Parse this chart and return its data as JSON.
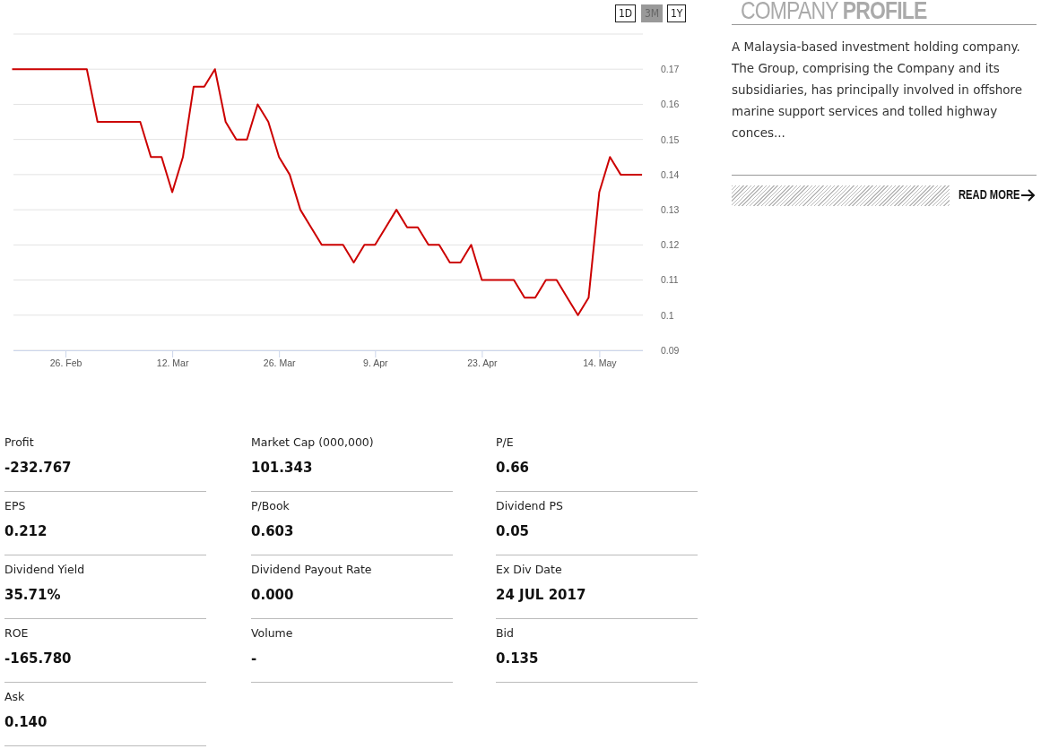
{
  "chart_data": [
    {
      "type": "line",
      "categories": [
        null,
        null,
        null,
        null,
        null,
        "26. Feb",
        null,
        null,
        null,
        null,
        null,
        null,
        null,
        null,
        null,
        "12. Mar",
        null,
        null,
        null,
        null,
        null,
        null,
        null,
        null,
        null,
        "26. Mar",
        null,
        null,
        null,
        null,
        null,
        null,
        null,
        null,
        "9. Apr",
        null,
        null,
        null,
        null,
        null,
        null,
        null,
        null,
        null,
        "23. Apr",
        null,
        null,
        null,
        null,
        null,
        null,
        null,
        null,
        null,
        null,
        "14. May",
        null,
        null,
        null,
        null
      ],
      "series": [
        {
          "color": "#cc0000",
          "values": [
            0.17,
            0.17,
            0.17,
            0.17,
            0.17,
            0.17,
            0.17,
            0.17,
            0.155,
            0.155,
            0.155,
            0.155,
            0.155,
            0.145,
            0.145,
            0.135,
            0.145,
            0.165,
            0.165,
            0.17,
            0.155,
            0.15,
            0.15,
            0.16,
            0.155,
            0.145,
            0.14,
            0.13,
            0.125,
            0.12,
            0.12,
            0.12,
            0.115,
            0.12,
            0.12,
            0.125,
            0.13,
            0.125,
            0.125,
            0.12,
            0.12,
            0.115,
            0.115,
            0.12,
            0.11,
            0.11,
            0.11,
            0.11,
            0.105,
            0.105,
            0.11,
            0.11,
            0.105,
            0.1,
            0.105,
            0.135,
            0.145,
            0.14,
            0.14,
            0.14
          ]
        }
      ],
      "ylim": [
        0.09,
        0.18
      ],
      "yticks": [
        0.09,
        0.1,
        0.11,
        0.12,
        0.13,
        0.14,
        0.15,
        0.16,
        0.17,
        {
          "value": 0.18,
          "label": null
        }
      ],
      "grid": "y",
      "marker": "none",
      "annotations": [
        "1D",
        "3M",
        "1Y"
      ]
    },
    {
      "type": "other",
      "title": "COMPANY PROFILE",
      "annotations": [
        "A Malaysia-based investment holding company. The Group, comprising the Company and its subsidiaries, has principally involved in offshore marine support services and tolled highway conces...",
        "READ MORE"
      ]
    },
    {
      "type": "other",
      "annotations": [
        "Profit",
        "-232.767",
        "Market Cap (000,000)",
        "101.343",
        "P/E",
        "0.66",
        "EPS",
        "0.212",
        "P/Book",
        "0.603",
        "Dividend PS",
        "0.05",
        "Dividend Yield",
        "35.71%",
        "Dividend Payout Rate",
        "0.000",
        "Ex Div Date",
        "24 JUL 2017",
        "ROE",
        "-165.780",
        "Volume",
        "-",
        "Bid",
        "0.135",
        "Ask",
        "0.140"
      ]
    }
  ]
}
